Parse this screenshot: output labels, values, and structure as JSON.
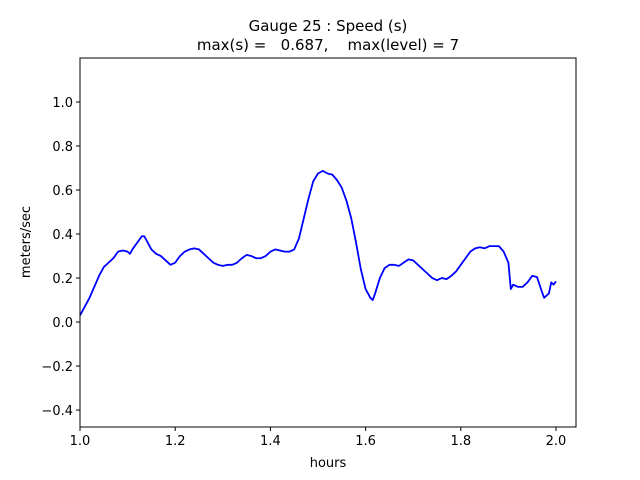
{
  "chart_data": {
    "type": "line",
    "title": "Gauge 25 : Speed (s)",
    "subtitle": "max(s) =   0.687,    max(level) = 7",
    "x_label": "hours",
    "y_label": "meters/sec",
    "color": "#0000ff",
    "x": [
      1.0,
      1.01,
      1.02,
      1.03,
      1.04,
      1.05,
      1.06,
      1.07,
      1.08,
      1.09,
      1.1,
      1.105,
      1.11,
      1.12,
      1.13,
      1.135,
      1.14,
      1.15,
      1.16,
      1.17,
      1.18,
      1.19,
      1.2,
      1.21,
      1.22,
      1.23,
      1.24,
      1.25,
      1.26,
      1.27,
      1.28,
      1.29,
      1.3,
      1.31,
      1.32,
      1.33,
      1.34,
      1.35,
      1.36,
      1.37,
      1.38,
      1.39,
      1.4,
      1.41,
      1.42,
      1.43,
      1.44,
      1.45,
      1.46,
      1.47,
      1.48,
      1.49,
      1.5,
      1.51,
      1.52,
      1.53,
      1.54,
      1.55,
      1.56,
      1.57,
      1.58,
      1.59,
      1.6,
      1.61,
      1.615,
      1.62,
      1.63,
      1.64,
      1.65,
      1.66,
      1.67,
      1.68,
      1.69,
      1.7,
      1.71,
      1.72,
      1.73,
      1.74,
      1.75,
      1.76,
      1.77,
      1.78,
      1.79,
      1.8,
      1.81,
      1.82,
      1.83,
      1.84,
      1.85,
      1.86,
      1.87,
      1.88,
      1.89,
      1.9,
      1.905,
      1.91,
      1.92,
      1.93,
      1.94,
      1.95,
      1.96,
      1.97,
      1.975,
      1.98,
      1.985,
      1.99,
      1.995,
      2.0
    ],
    "values": [
      0.03,
      0.07,
      0.11,
      0.16,
      0.21,
      0.25,
      0.27,
      0.29,
      0.32,
      0.325,
      0.32,
      0.31,
      0.33,
      0.36,
      0.39,
      0.39,
      0.37,
      0.33,
      0.31,
      0.3,
      0.28,
      0.26,
      0.27,
      0.3,
      0.32,
      0.33,
      0.335,
      0.33,
      0.31,
      0.29,
      0.27,
      0.26,
      0.255,
      0.26,
      0.26,
      0.27,
      0.29,
      0.305,
      0.3,
      0.29,
      0.29,
      0.3,
      0.32,
      0.33,
      0.325,
      0.32,
      0.32,
      0.33,
      0.38,
      0.47,
      0.56,
      0.64,
      0.675,
      0.687,
      0.675,
      0.67,
      0.645,
      0.61,
      0.55,
      0.47,
      0.36,
      0.24,
      0.15,
      0.11,
      0.1,
      0.13,
      0.2,
      0.245,
      0.26,
      0.26,
      0.255,
      0.27,
      0.285,
      0.28,
      0.26,
      0.24,
      0.22,
      0.2,
      0.19,
      0.2,
      0.195,
      0.21,
      0.23,
      0.26,
      0.29,
      0.32,
      0.335,
      0.34,
      0.335,
      0.345,
      0.345,
      0.345,
      0.32,
      0.27,
      0.15,
      0.17,
      0.16,
      0.16,
      0.18,
      0.21,
      0.205,
      0.14,
      0.11,
      0.12,
      0.13,
      0.18,
      0.17,
      0.185
    ],
    "xlim": [
      1.0,
      2.042
    ],
    "xticks": [
      {
        "value": 1.0,
        "label": "1.0"
      },
      1.2,
      1.4,
      1.6,
      1.8,
      {
        "value": 2.0,
        "label": "2.0"
      }
    ],
    "ylim": [
      -0.477,
      1.2
    ],
    "yticks": [
      {
        "value": -0.4,
        "label": "−0.4"
      },
      {
        "value": -0.2,
        "label": "−0.2"
      },
      {
        "value": 0.0,
        "label": "0.0"
      },
      0.2,
      0.4,
      0.6,
      0.8,
      {
        "value": 1.0,
        "label": "1.0"
      }
    ]
  }
}
